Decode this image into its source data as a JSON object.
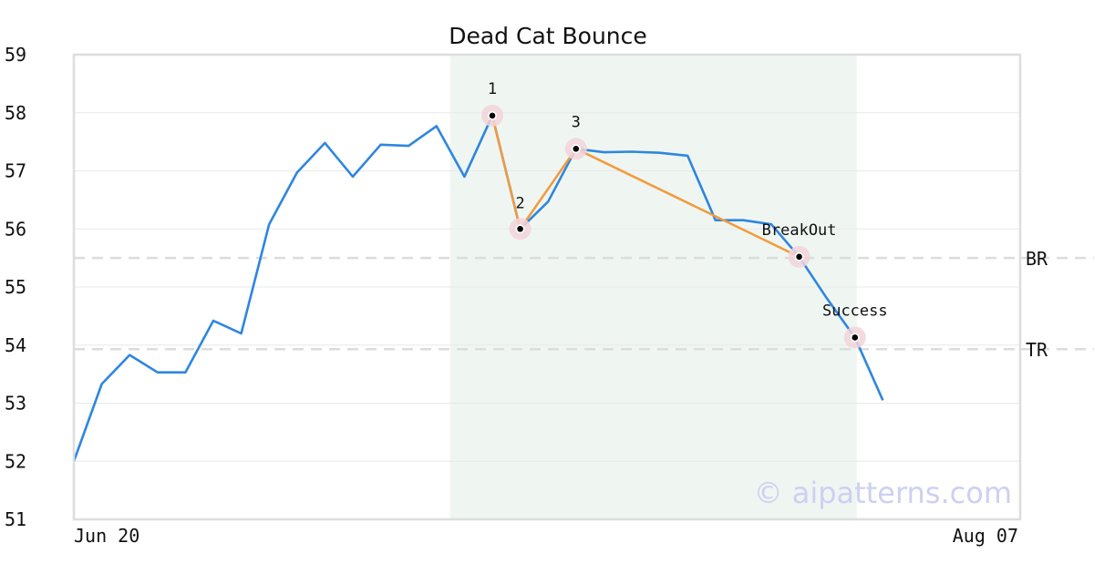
{
  "chart_data": {
    "type": "line",
    "title": "Dead Cat Bounce",
    "xlabel": "",
    "ylabel": "",
    "ylim": [
      51,
      59
    ],
    "y_ticks": [
      51,
      52,
      53,
      54,
      55,
      56,
      57,
      58,
      59
    ],
    "x_tick_labels": [
      "Jun 20",
      "Aug 07"
    ],
    "grid": true,
    "series": [
      {
        "color": "#2e86e0",
        "values": [
          52.0,
          53.33,
          53.83,
          53.53,
          53.53,
          54.42,
          54.2,
          56.08,
          56.97,
          57.48,
          56.9,
          57.45,
          57.43,
          57.77,
          56.9,
          57.95,
          56.0,
          56.47,
          57.38,
          57.32,
          57.33,
          57.31,
          57.26,
          56.15,
          56.15,
          56.08,
          55.52,
          54.8,
          54.13,
          53.05
        ]
      }
    ],
    "pattern_points": [
      {
        "label": "1",
        "index": 15,
        "value": 57.95
      },
      {
        "label": "2",
        "index": 16,
        "value": 56.0
      },
      {
        "label": "3",
        "index": 18,
        "value": 57.38
      },
      {
        "label": "BreakOut",
        "index": 26,
        "value": 55.52
      },
      {
        "label": "Success",
        "index": 28,
        "value": 54.13
      }
    ],
    "pattern_color": "#f39a3e",
    "highlight_range": {
      "start_index": 13,
      "end_index": 28,
      "color": "#eff6f2"
    },
    "levels": [
      {
        "label": "BR",
        "value": 55.5
      },
      {
        "label": "TR",
        "value": 53.93
      }
    ],
    "watermark": "© aipatterns.com"
  }
}
